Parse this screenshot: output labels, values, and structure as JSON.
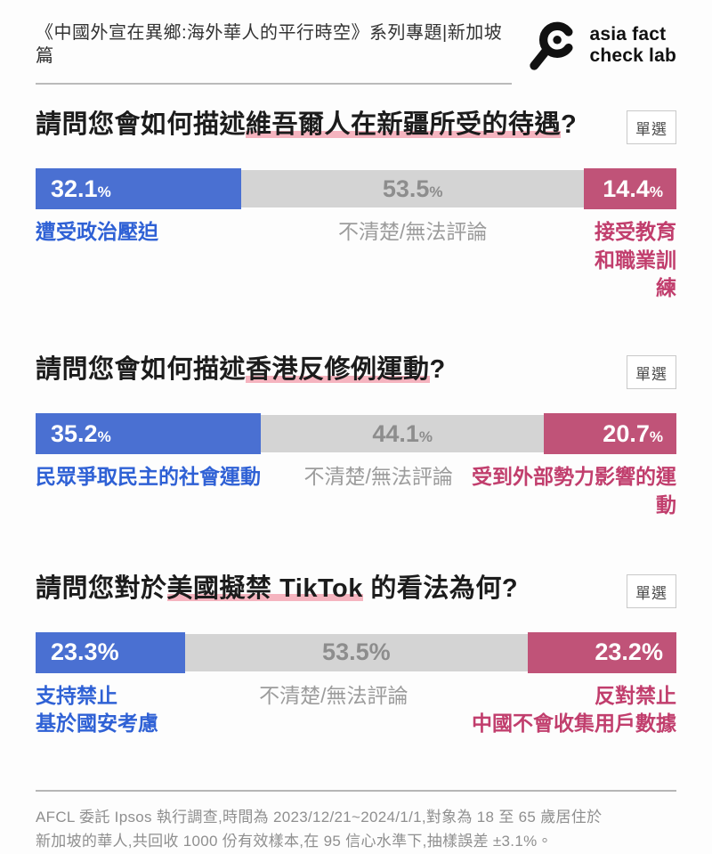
{
  "header": {
    "series_title": "《中國外宣在異鄉:海外華人的平行時空》系列專題|新加坡篇",
    "logo": {
      "icon": "magnifier-icon",
      "line1": "asia fact",
      "line2": "check lab"
    }
  },
  "questions": [
    {
      "title_prefix": "請問您會如何描述",
      "title_highlight": "維吾爾人在新疆所受的待遇",
      "title_suffix": "?",
      "badge": "單選",
      "segments": [
        {
          "label": "遭受政治壓迫",
          "value": "32.1",
          "unit": "%",
          "pct": 32.1,
          "color": "#4a70d2"
        },
        {
          "label": "不清楚/無法評論",
          "value": "53.5",
          "unit": "%",
          "pct": 53.5,
          "color": "#d4d4d4"
        },
        {
          "label": "接受教育和職業訓練",
          "value": "14.4",
          "unit": "%",
          "pct": 14.4,
          "color": "#c05378"
        }
      ]
    },
    {
      "title_prefix": "請問您會如何描述",
      "title_highlight": "香港反修例運動",
      "title_suffix": "?",
      "badge": "單選",
      "segments": [
        {
          "label": "民眾爭取民主的社會運動",
          "value": "35.2",
          "unit": "%",
          "pct": 35.2,
          "color": "#4a70d2"
        },
        {
          "label": "不清楚/無法評論",
          "value": "44.1",
          "unit": "%",
          "pct": 44.1,
          "color": "#d4d4d4"
        },
        {
          "label": "受到外部勢力影響的運動",
          "value": "20.7",
          "unit": "%",
          "pct": 20.7,
          "color": "#c05378"
        }
      ]
    },
    {
      "title_prefix": "請問您對於",
      "title_highlight": "美國擬禁 TikTok",
      "title_suffix": " 的看法為何?",
      "badge": "單選",
      "segments": [
        {
          "label_lines": [
            "支持禁止",
            "基於國安考慮"
          ],
          "value": "23.3",
          "unit": "%",
          "pct": 23.3,
          "color": "#4a70d2"
        },
        {
          "label": "不清楚/無法評論",
          "value": "53.5",
          "unit": "%",
          "pct": 53.5,
          "color": "#d4d4d4"
        },
        {
          "label_lines": [
            "反對禁止",
            "中國不會收集用戶數據"
          ],
          "value": "23.2",
          "unit": "%",
          "pct": 23.2,
          "color": "#c05378"
        }
      ]
    }
  ],
  "footer": {
    "line1": "AFCL 委託 Ipsos 執行調查,時間為 2023/12/21~2024/1/1,對象為 18 至 65 歲居住於",
    "line2": "新加坡的華人,共回收 1000 份有效樣本,在 95 信心水準下,抽樣誤差 ±3.1%。"
  },
  "colors": {
    "blue_bar": "#4a70d2",
    "gray_bar": "#d4d4d4",
    "pink_bar": "#c05378",
    "blue_label": "#2f61d5",
    "gray_label": "#9c9c9c",
    "pink_label": "#c13e6d",
    "highlight_underline": "#f5b4bf"
  },
  "chart_data": [
    {
      "type": "bar",
      "title": "請問您會如何描述維吾爾人在新疆所受的待遇?",
      "categories": [
        "遭受政治壓迫",
        "不清楚/無法評論",
        "接受教育和職業訓練"
      ],
      "values": [
        32.1,
        53.5,
        14.4
      ],
      "unit": "%",
      "layout": "horizontal-stacked",
      "xlim": [
        0,
        100
      ]
    },
    {
      "type": "bar",
      "title": "請問您會如何描述香港反修例運動?",
      "categories": [
        "民眾爭取民主的社會運動",
        "不清楚/無法評論",
        "受到外部勢力影響的運動"
      ],
      "values": [
        35.2,
        44.1,
        20.7
      ],
      "unit": "%",
      "layout": "horizontal-stacked",
      "xlim": [
        0,
        100
      ]
    },
    {
      "type": "bar",
      "title": "請問您對於美國擬禁 TikTok 的看法為何?",
      "categories": [
        "支持禁止 基於國安考慮",
        "不清楚/無法評論",
        "反對禁止 中國不會收集用戶數據"
      ],
      "values": [
        23.3,
        53.5,
        23.2
      ],
      "unit": "%",
      "layout": "horizontal-stacked",
      "xlim": [
        0,
        100
      ]
    }
  ]
}
